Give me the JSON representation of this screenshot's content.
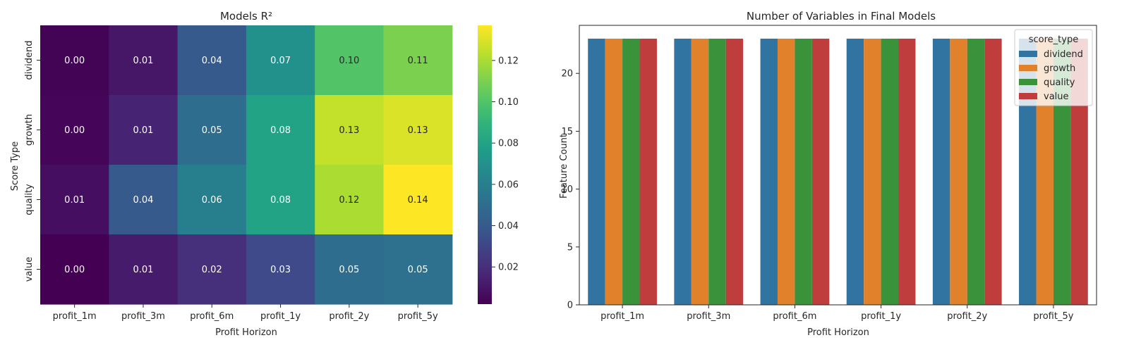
{
  "chart_data": [
    {
      "type": "heatmap",
      "title": "Models R²",
      "xlabel": "Profit Horizon",
      "ylabel": "Score Type",
      "x_categories": [
        "profit_1m",
        "profit_3m",
        "profit_6m",
        "profit_1y",
        "profit_2y",
        "profit_5y"
      ],
      "y_categories": [
        "dividend",
        "growth",
        "quality",
        "value"
      ],
      "values": [
        [
          0.003,
          0.01,
          0.04,
          0.07,
          0.1,
          0.11
        ],
        [
          0.004,
          0.015,
          0.05,
          0.08,
          0.125,
          0.13
        ],
        [
          0.007,
          0.04,
          0.06,
          0.08,
          0.12,
          0.137
        ],
        [
          0.002,
          0.012,
          0.02,
          0.032,
          0.05,
          0.052
        ]
      ],
      "cell_labels": [
        [
          "0.00",
          "0.01",
          "0.04",
          "0.07",
          "0.10",
          "0.11"
        ],
        [
          "0.00",
          "0.01",
          "0.05",
          "0.08",
          "0.13",
          "0.13"
        ],
        [
          "0.01",
          "0.04",
          "0.06",
          "0.08",
          "0.12",
          "0.14"
        ],
        [
          "0.00",
          "0.01",
          "0.02",
          "0.03",
          "0.05",
          "0.05"
        ]
      ],
      "colormap": "viridis",
      "colorbar": {
        "range": [
          0.002,
          0.137
        ],
        "ticks": [
          0.02,
          0.04,
          0.06,
          0.08,
          0.1,
          0.12
        ],
        "tick_labels": [
          "0.02",
          "0.04",
          "0.06",
          "0.08",
          "0.10",
          "0.12"
        ]
      }
    },
    {
      "type": "bar",
      "title": "Number of Variables in Final Models",
      "xlabel": "Profit Horizon",
      "ylabel": "Feature Count",
      "categories": [
        "profit_1m",
        "profit_3m",
        "profit_6m",
        "profit_1y",
        "profit_2y",
        "profit_5y"
      ],
      "series": [
        {
          "name": "dividend",
          "color": "#3274a1",
          "values": [
            23,
            23,
            23,
            23,
            23,
            23
          ]
        },
        {
          "name": "growth",
          "color": "#e1812c",
          "values": [
            23,
            23,
            23,
            23,
            23,
            23
          ]
        },
        {
          "name": "quality",
          "color": "#3a923a",
          "values": [
            23,
            23,
            23,
            23,
            23,
            23
          ]
        },
        {
          "name": "value",
          "color": "#c03d3e",
          "values": [
            23,
            23,
            23,
            23,
            23,
            23
          ]
        }
      ],
      "ylim": [
        0,
        24.15
      ],
      "yticks": [
        0,
        5,
        10,
        15,
        20
      ],
      "legend": {
        "title": "score_type",
        "position": "top-right"
      },
      "grid": false
    }
  ]
}
